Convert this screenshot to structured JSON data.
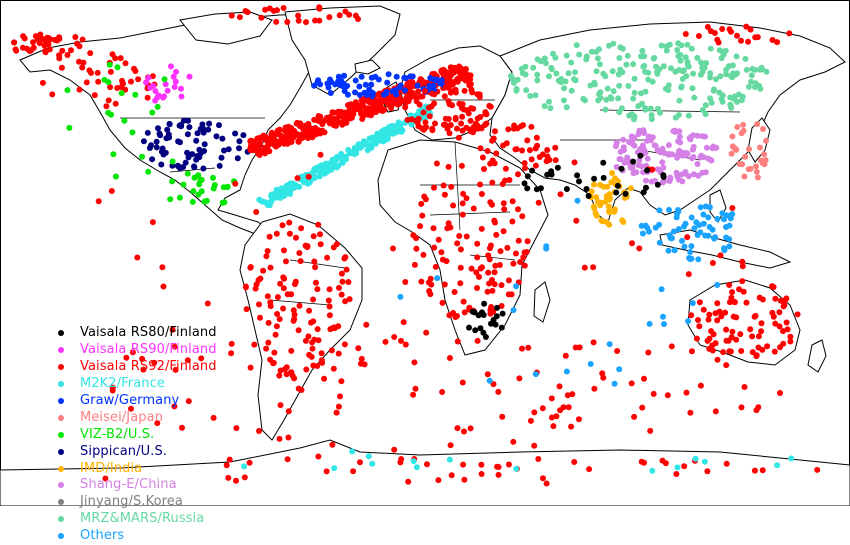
{
  "map": {
    "legend": [
      {
        "label": "Vaisala RS80/Finland",
        "color": "#000000"
      },
      {
        "label": "Vaisala RS90/Finland",
        "color": "#ff33ff"
      },
      {
        "label": "Vaisala RS92/Finland",
        "color": "#ff0000"
      },
      {
        "label": "M2K2/France",
        "color": "#33e6e6"
      },
      {
        "label": "Graw/Germany",
        "color": "#0033ff"
      },
      {
        "label": "Meisei/Japan",
        "color": "#ff7f7f"
      },
      {
        "label": "VIZ-B2/U.S.",
        "color": "#00e600"
      },
      {
        "label": "Sippican/U.S.",
        "color": "#000080"
      },
      {
        "label": "IMD/India",
        "color": "#ffb300"
      },
      {
        "label": "Shang-E/China",
        "color": "#d580e6"
      },
      {
        "label": "Jinyang/S.Korea",
        "color": "#808080"
      },
      {
        "label": "MRZ&MARS/Russia",
        "color": "#66d9a0"
      },
      {
        "label": "Others",
        "color": "#1aa3ff"
      }
    ]
  }
}
